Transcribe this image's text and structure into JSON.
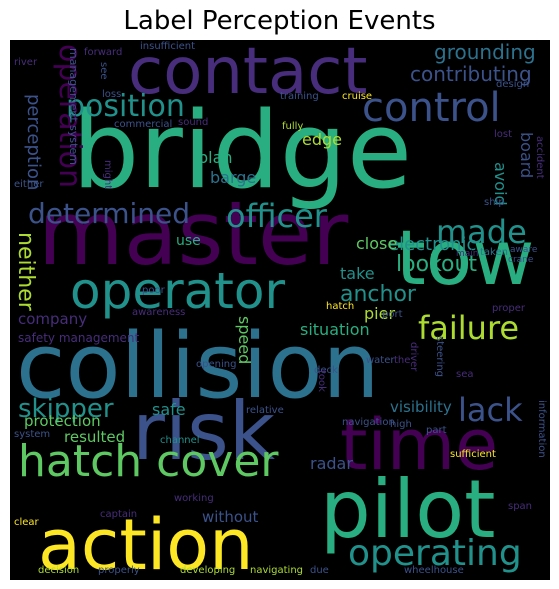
{
  "title": "Label Perception Events",
  "words": {
    "bridge": "bridge",
    "master": "master",
    "collision": "collision",
    "contact": "contact",
    "tow": "tow",
    "risk": "risk",
    "time": "time",
    "pilot": "pilot",
    "action": "action",
    "operator": "operator",
    "hatch_cover": "hatch cover",
    "operating": "operating",
    "control": "control",
    "position": "position",
    "operation": "operation",
    "made": "made",
    "determined": "determined",
    "officer": "officer",
    "failure": "failure",
    "lack": "lack",
    "skipper": "skipper",
    "anchor": "anchor",
    "lookout": "lookout",
    "neither": "neither",
    "grounding": "grounding",
    "contributing": "contributing",
    "perception": "perception",
    "management_system": "management system",
    "plan": "plan",
    "barge": "barge",
    "edge": "edge",
    "board": "board",
    "avoid": "avoid",
    "electronic": "electronic",
    "close": "close",
    "take": "take",
    "pier": "pier",
    "situation": "situation",
    "speed": "speed",
    "company": "company",
    "safety_management": "safety management",
    "safe": "safe",
    "visibility": "visibility",
    "protection": "protection",
    "resulted": "resulted",
    "radar": "radar",
    "without": "without",
    "use": "use",
    "forward": "forward",
    "insufficient": "insufficient",
    "river": "river",
    "see": "see",
    "loss": "loss",
    "training": "training",
    "cruise": "cruise",
    "design": "design",
    "commercial": "commercial",
    "sound": "sound",
    "fully": "fully",
    "lost": "lost",
    "accident": "accident",
    "might": "might",
    "either": "either",
    "ship": "ship",
    "taken": "taken",
    "main": "main",
    "aware": "aware",
    "crane": "crane",
    "poor": "poor",
    "awareness": "awareness",
    "hatch": "hatch",
    "port": "port",
    "proper": "proper",
    "deck": "deck",
    "opening": "opening",
    "driver": "driver",
    "steering": "steering",
    "took": "took",
    "water": "water",
    "the": "the",
    "sea": "sea",
    "relative": "relative",
    "navigation": "navigation",
    "part": "part",
    "system": "system",
    "channel": "channel",
    "high": "high",
    "information": "information",
    "working": "working",
    "sufficient": "sufficient",
    "clear": "clear",
    "captain": "captain",
    "span": "span",
    "decision": "decision",
    "properly": "properly",
    "developing": "developing",
    "navigating": "navigating",
    "due": "due",
    "wheelhouse": "wheelhouse"
  },
  "colors": {
    "background": "#000000",
    "purple": "#440154",
    "indigo": "#472d7b",
    "blue": "#3b528b",
    "steel": "#2c728e",
    "teal": "#21918c",
    "green": "#28ae80",
    "lime": "#5ec962",
    "yellowgreen": "#addc30",
    "yellow": "#fde725"
  }
}
